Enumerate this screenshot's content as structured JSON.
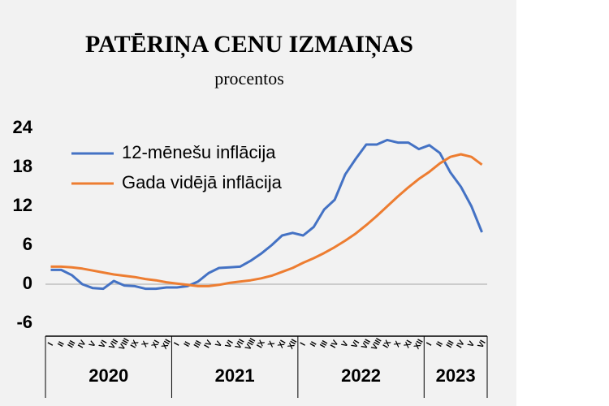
{
  "chart_data": {
    "type": "line",
    "title": "PATĒRIŅA CENU IZMAIŅAS",
    "subtitle": "procentos",
    "categories": [
      "I",
      "II",
      "III",
      "IV",
      "V",
      "VI",
      "VII",
      "VIII",
      "IX",
      "X",
      "XI",
      "XII",
      "I",
      "II",
      "III",
      "IV",
      "V",
      "VI",
      "VII",
      "VIII",
      "IX",
      "X",
      "XI",
      "XII",
      "I",
      "II",
      "III",
      "IV",
      "V",
      "VI",
      "VII",
      "VIII",
      "IX",
      "X",
      "XI",
      "XII",
      "I",
      "II",
      "III",
      "IV",
      "V",
      "VI"
    ],
    "years": [
      "2020",
      "2021",
      "2022",
      "2023"
    ],
    "series": [
      {
        "name": "12-mēnešu inflācija",
        "color": "#4472c4",
        "values": [
          2.2,
          2.2,
          1.4,
          0,
          -0.6,
          -0.7,
          0.5,
          -0.2,
          -0.3,
          -0.7,
          -0.7,
          -0.5,
          -0.5,
          -0.3,
          0.4,
          1.7,
          2.5,
          2.6,
          2.7,
          3.6,
          4.7,
          6,
          7.5,
          7.9,
          7.5,
          8.8,
          11.5,
          13,
          16.9,
          19.3,
          21.5,
          21.5,
          22.2,
          21.8,
          21.8,
          20.8,
          21.4,
          20.2,
          17.2,
          15,
          12,
          8
        ]
      },
      {
        "name": "Gada vidējā inflācija",
        "color": "#ed7d31",
        "values": [
          2.7,
          2.7,
          2.6,
          2.4,
          2.1,
          1.8,
          1.5,
          1.3,
          1.1,
          0.8,
          0.6,
          0.3,
          0.1,
          -0.1,
          -0.3,
          -0.3,
          -0.1,
          0.2,
          0.4,
          0.6,
          0.9,
          1.3,
          1.9,
          2.5,
          3.3,
          4,
          4.8,
          5.7,
          6.7,
          7.8,
          9.1,
          10.5,
          12,
          13.5,
          14.9,
          16.2,
          17.3,
          18.6,
          19.6,
          20,
          19.6,
          18.4
        ]
      }
    ],
    "ylim": [
      -8,
      24
    ],
    "yticks": [
      -6,
      0,
      6,
      12,
      18,
      24
    ]
  }
}
